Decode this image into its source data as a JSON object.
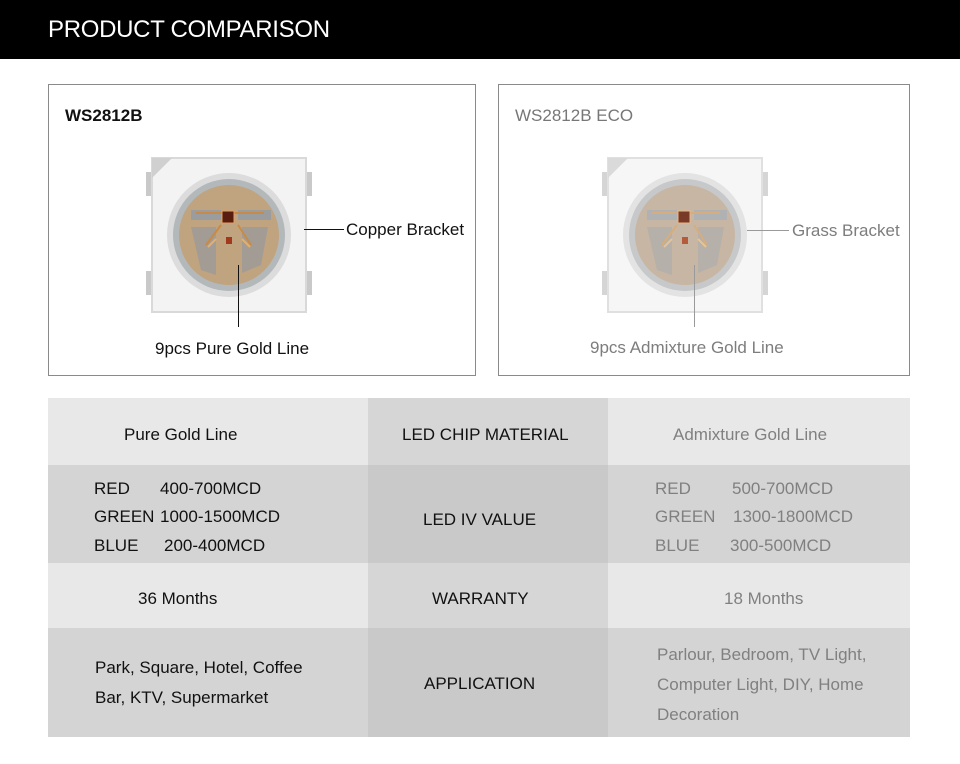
{
  "header": {
    "title": "PRODUCT COMPARISON"
  },
  "left_panel": {
    "title": "WS2812B",
    "bracket_label": "Copper Bracket",
    "line_label": "9pcs Pure Gold Line"
  },
  "right_panel": {
    "title": "WS2812B ECO",
    "bracket_label": "Grass Bracket",
    "line_label": "9pcs Admixture Gold Line"
  },
  "table": {
    "rows": [
      {
        "label": "LED CHIP MATERIAL",
        "left": "Pure Gold Line",
        "right": "Admixture Gold Line"
      },
      {
        "label": "LED IV VALUE",
        "left": [
          {
            "color": "RED",
            "value": "400-700MCD"
          },
          {
            "color": "GREEN",
            "value": "1000-1500MCD"
          },
          {
            "color": "BLUE",
            "value": "200-400MCD"
          }
        ],
        "right": [
          {
            "color": "RED",
            "value": "500-700MCD"
          },
          {
            "color": "GREEN",
            "value": "1300-1800MCD"
          },
          {
            "color": "BLUE",
            "value": "300-500MCD"
          }
        ]
      },
      {
        "label": "WARRANTY",
        "left": "36 Months",
        "right": "18 Months"
      },
      {
        "label": "APPLICATION",
        "left": [
          "Park, Square, Hotel, Coffee",
          "Bar, KTV, Supermarket"
        ],
        "right": [
          "Parlour, Bedroom, TV Light,",
          "Computer Light, DIY, Home",
          "Decoration"
        ]
      }
    ]
  },
  "colors": {
    "header_bg": "#000000",
    "row_light": "#e8e8e8",
    "row_dark": "#d4d4d4",
    "mid_light": "#d6d6d6",
    "mid_dark": "#c9c9c9",
    "copper": "#c8843f",
    "gold": "#d8a86a"
  }
}
